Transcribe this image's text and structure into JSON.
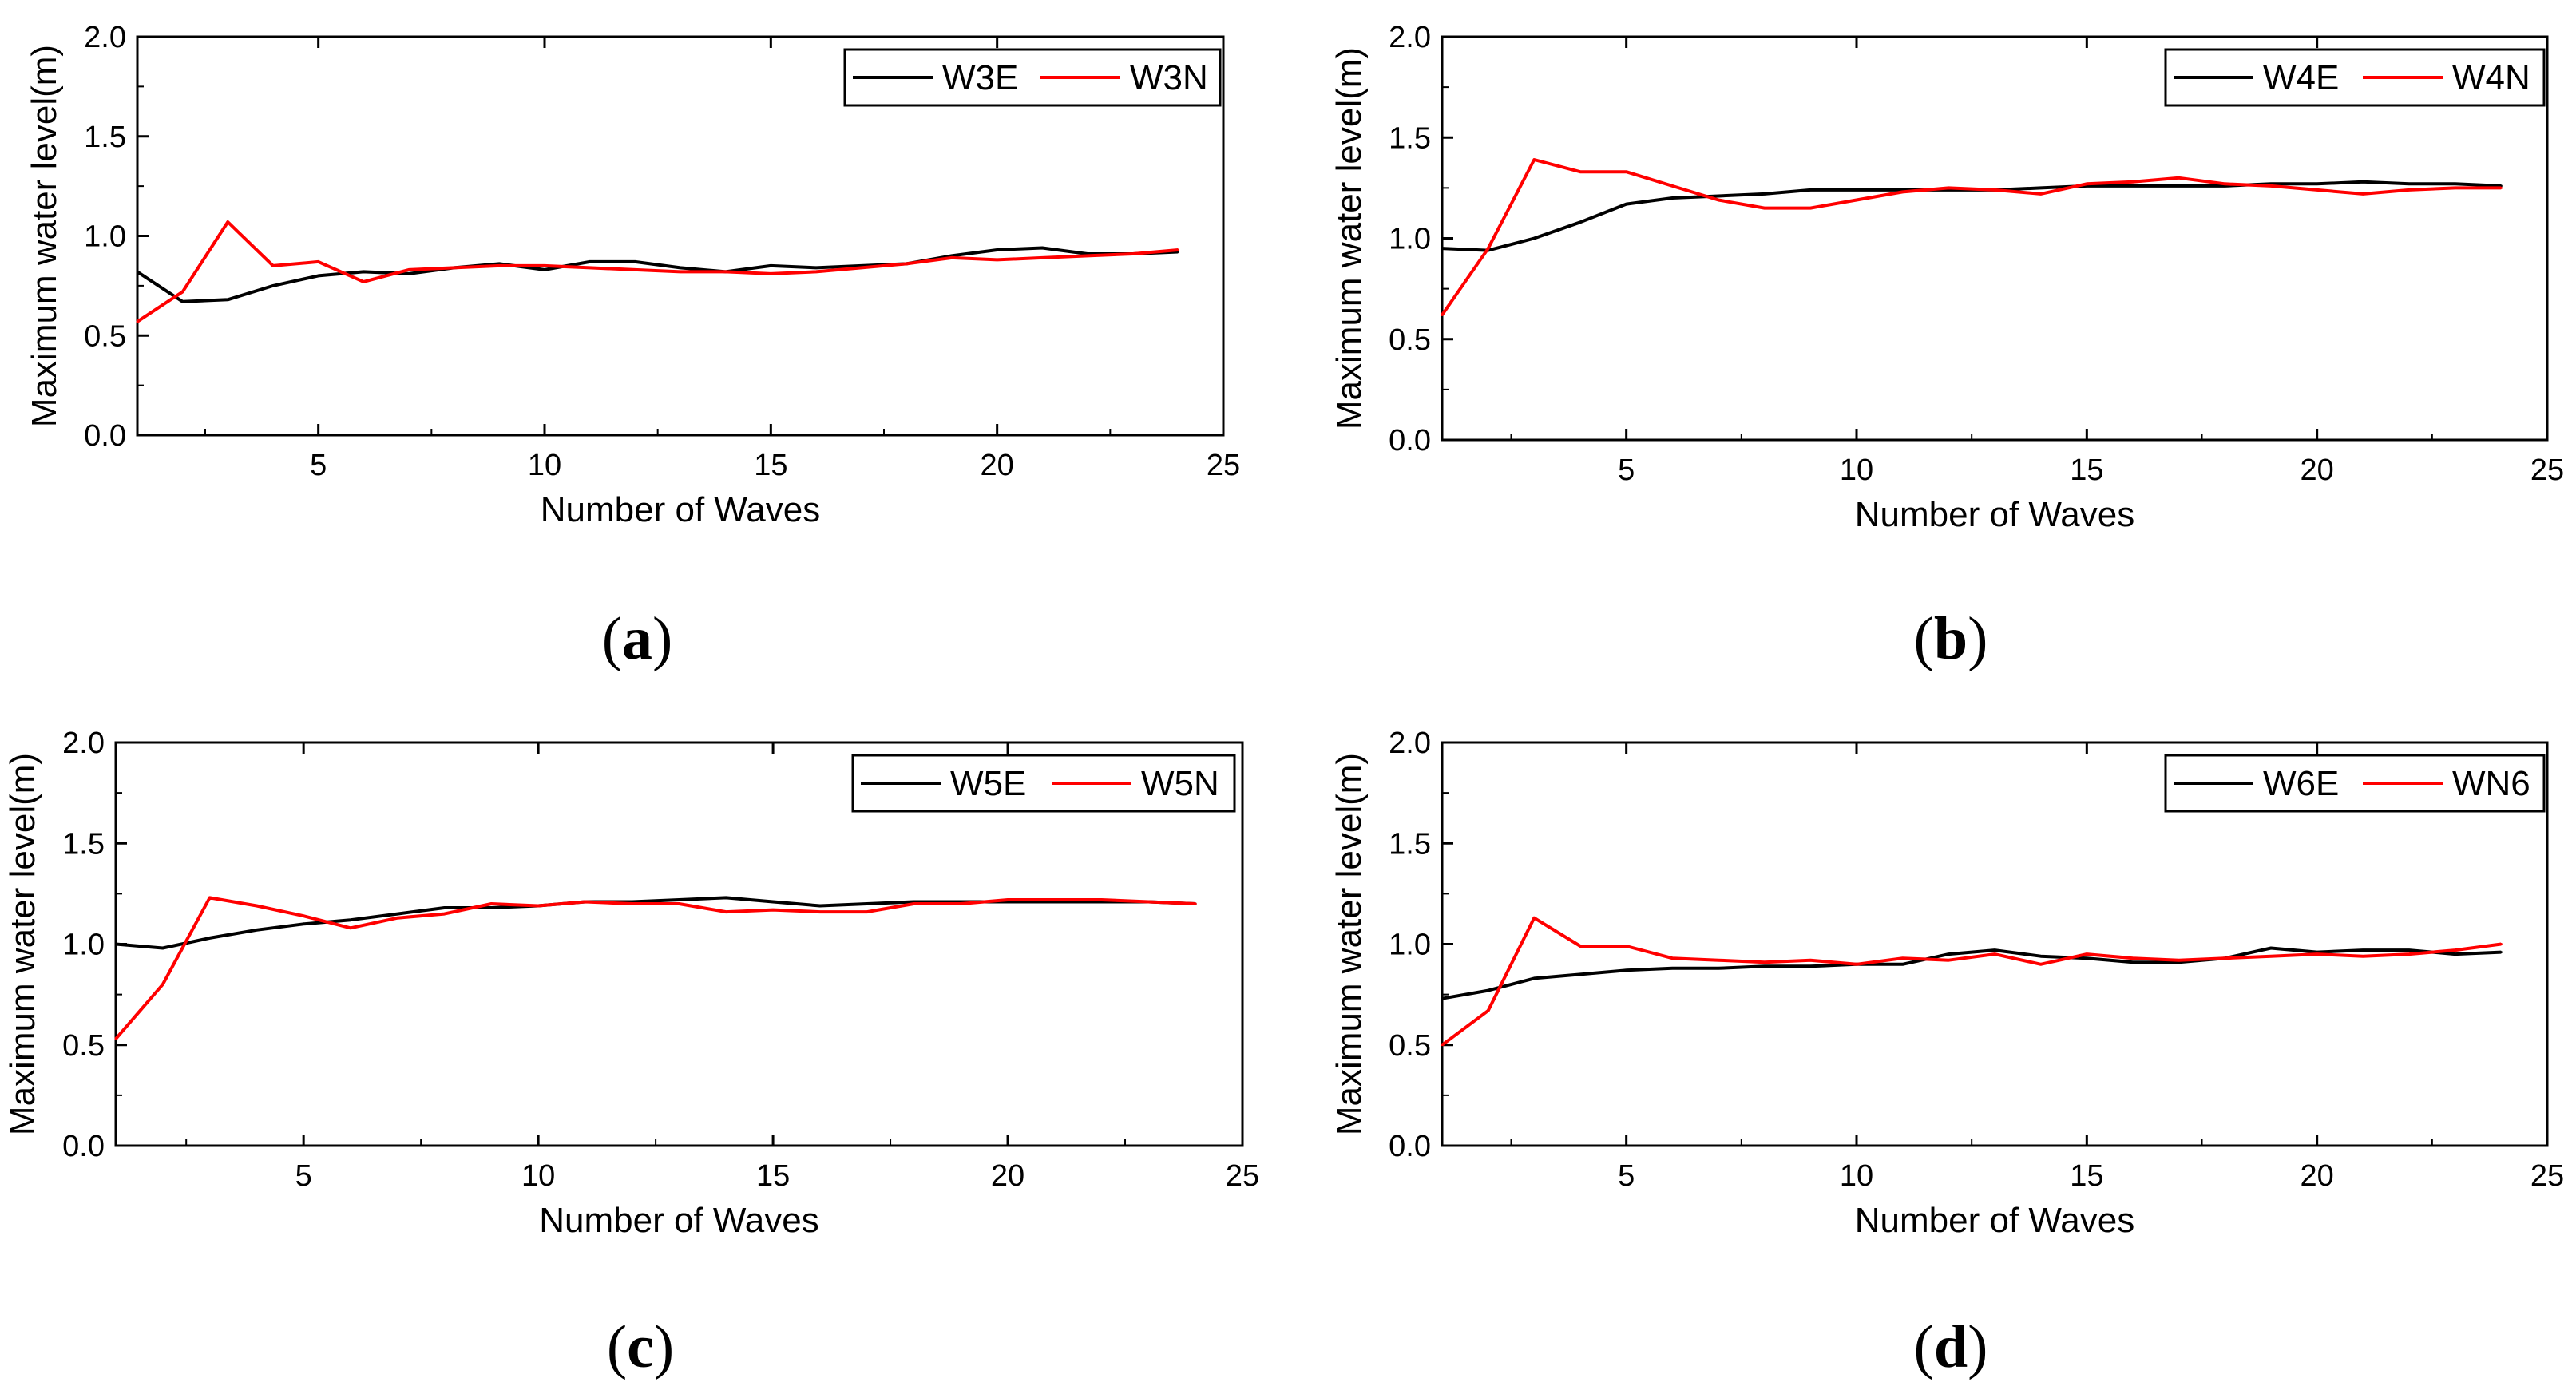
{
  "figure": {
    "panels": [
      {
        "label": "a"
      },
      {
        "label": "b"
      },
      {
        "label": "c"
      },
      {
        "label": "d"
      }
    ]
  },
  "chart_data": [
    {
      "type": "line",
      "panel_label": "(a)",
      "xlabel": "Number of Waves",
      "ylabel": "Maximum water level(m)",
      "xlim": [
        1,
        25
      ],
      "ylim": [
        0.0,
        2.0
      ],
      "xticks": [
        "5",
        "10",
        "15",
        "20",
        "25"
      ],
      "yticks": [
        "0.0",
        "0.5",
        "1.0",
        "1.5",
        "2.0"
      ],
      "legend_position": "top-right",
      "x": [
        1,
        2,
        3,
        4,
        5,
        6,
        7,
        8,
        9,
        10,
        11,
        12,
        13,
        14,
        15,
        16,
        17,
        18,
        19,
        20,
        21,
        22,
        23,
        24
      ],
      "series": [
        {
          "name": "W3E",
          "color": "#000000",
          "values": [
            0.82,
            0.67,
            0.68,
            0.75,
            0.8,
            0.82,
            0.81,
            0.84,
            0.86,
            0.83,
            0.87,
            0.87,
            0.84,
            0.82,
            0.85,
            0.84,
            0.85,
            0.86,
            0.9,
            0.93,
            0.94,
            0.91,
            0.91,
            0.92
          ]
        },
        {
          "name": "W3N",
          "color": "#ff0000",
          "values": [
            0.57,
            0.72,
            1.07,
            0.85,
            0.87,
            0.77,
            0.83,
            0.84,
            0.85,
            0.85,
            0.84,
            0.83,
            0.82,
            0.82,
            0.81,
            0.82,
            0.84,
            0.86,
            0.89,
            0.88,
            0.89,
            0.9,
            0.91,
            0.93
          ]
        }
      ]
    },
    {
      "type": "line",
      "panel_label": "(b)",
      "xlabel": "Number of Waves",
      "ylabel": "Maximum water level(m)",
      "xlim": [
        1,
        25
      ],
      "ylim": [
        0.0,
        2.0
      ],
      "xticks": [
        "5",
        "10",
        "15",
        "20",
        "25"
      ],
      "yticks": [
        "0.0",
        "0.5",
        "1.0",
        "1.5",
        "2.0"
      ],
      "legend_position": "top-right",
      "x": [
        1,
        2,
        3,
        4,
        5,
        6,
        7,
        8,
        9,
        10,
        11,
        12,
        13,
        14,
        15,
        16,
        17,
        18,
        19,
        20,
        21,
        22,
        23,
        24
      ],
      "series": [
        {
          "name": "W4E",
          "color": "#000000",
          "values": [
            0.95,
            0.94,
            1.0,
            1.08,
            1.17,
            1.2,
            1.21,
            1.22,
            1.24,
            1.24,
            1.24,
            1.24,
            1.24,
            1.25,
            1.26,
            1.26,
            1.26,
            1.26,
            1.27,
            1.27,
            1.28,
            1.27,
            1.27,
            1.26
          ]
        },
        {
          "name": "W4N",
          "color": "#ff0000",
          "values": [
            0.62,
            0.95,
            1.39,
            1.33,
            1.33,
            1.26,
            1.19,
            1.15,
            1.15,
            1.19,
            1.23,
            1.25,
            1.24,
            1.22,
            1.27,
            1.28,
            1.3,
            1.27,
            1.26,
            1.24,
            1.22,
            1.24,
            1.25,
            1.25
          ]
        }
      ]
    },
    {
      "type": "line",
      "panel_label": "(c)",
      "xlabel": "Number of Waves",
      "ylabel": "Maximum water level(m)",
      "xlim": [
        1,
        25
      ],
      "ylim": [
        0.0,
        2.0
      ],
      "xticks": [
        "5",
        "10",
        "15",
        "20",
        "25"
      ],
      "yticks": [
        "0.0",
        "0.5",
        "1.0",
        "1.5",
        "2.0"
      ],
      "legend_position": "top-right",
      "x": [
        1,
        2,
        3,
        4,
        5,
        6,
        7,
        8,
        9,
        10,
        11,
        12,
        13,
        14,
        15,
        16,
        17,
        18,
        19,
        20,
        21,
        22,
        23,
        24
      ],
      "series": [
        {
          "name": "W5E",
          "color": "#000000",
          "values": [
            1.0,
            0.98,
            1.03,
            1.07,
            1.1,
            1.12,
            1.15,
            1.18,
            1.18,
            1.19,
            1.21,
            1.21,
            1.22,
            1.23,
            1.21,
            1.19,
            1.2,
            1.21,
            1.21,
            1.21,
            1.21,
            1.21,
            1.21,
            1.2
          ]
        },
        {
          "name": "W5N",
          "color": "#ff0000",
          "values": [
            0.53,
            0.8,
            1.23,
            1.19,
            1.14,
            1.08,
            1.13,
            1.15,
            1.2,
            1.19,
            1.21,
            1.2,
            1.2,
            1.16,
            1.17,
            1.16,
            1.16,
            1.2,
            1.2,
            1.22,
            1.22,
            1.22,
            1.21,
            1.2
          ]
        }
      ]
    },
    {
      "type": "line",
      "panel_label": "(d)",
      "xlabel": "Number of Waves",
      "ylabel": "Maximum water level(m)",
      "xlim": [
        1,
        25
      ],
      "ylim": [
        0.0,
        2.0
      ],
      "xticks": [
        "5",
        "10",
        "15",
        "20",
        "25"
      ],
      "yticks": [
        "0.0",
        "0.5",
        "1.0",
        "1.5",
        "2.0"
      ],
      "legend_position": "top-right",
      "x": [
        1,
        2,
        3,
        4,
        5,
        6,
        7,
        8,
        9,
        10,
        11,
        12,
        13,
        14,
        15,
        16,
        17,
        18,
        19,
        20,
        21,
        22,
        23,
        24
      ],
      "series": [
        {
          "name": "W6E",
          "color": "#000000",
          "values": [
            0.73,
            0.77,
            0.83,
            0.85,
            0.87,
            0.88,
            0.88,
            0.89,
            0.89,
            0.9,
            0.9,
            0.95,
            0.97,
            0.94,
            0.93,
            0.91,
            0.91,
            0.93,
            0.98,
            0.96,
            0.97,
            0.97,
            0.95,
            0.96
          ]
        },
        {
          "name": "WN6",
          "color": "#ff0000",
          "values": [
            0.5,
            0.67,
            1.13,
            0.99,
            0.99,
            0.93,
            0.92,
            0.91,
            0.92,
            0.9,
            0.93,
            0.92,
            0.95,
            0.9,
            0.95,
            0.93,
            0.92,
            0.93,
            0.94,
            0.95,
            0.94,
            0.95,
            0.97,
            1.0
          ]
        }
      ]
    }
  ]
}
